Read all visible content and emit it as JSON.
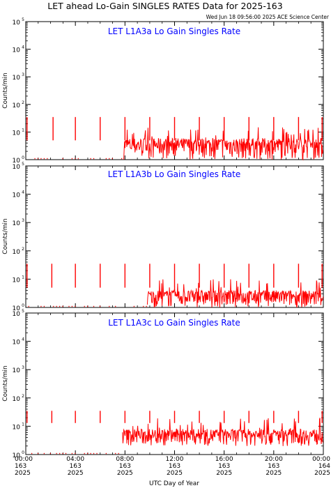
{
  "header": {
    "title": "LET ahead Lo-Gain SINGLES RATES Data for 2025-163",
    "timestamp": "Wed Jun 18 09:56:00 2025 ACE Science Center"
  },
  "colors": {
    "data": "#ff0000",
    "panel_title": "#0000ff",
    "axes": "#000000",
    "background": "#ffffff"
  },
  "chart_data": [
    {
      "type": "line",
      "title": "LET L1A3a Lo Gain Singles Rate",
      "ylabel": "Counts/min",
      "yscale": "log",
      "ylim": [
        1,
        100000
      ],
      "xlim": [
        0,
        24
      ],
      "x_unit": "hours of 2025-163 (UTC)",
      "spike_hours": [
        0.1,
        2.2,
        4.0,
        6.0,
        8.0,
        10.0,
        12.0,
        14.0,
        16.0,
        18.0,
        20.0,
        22.0,
        23.9
      ],
      "spike_peak": 35,
      "spike_low": 5,
      "sparse_until_hour": 7.9,
      "baseline_range": [
        1,
        6
      ]
    },
    {
      "type": "line",
      "title": "LET L1A3b Lo Gain Singles Rate",
      "ylabel": "Counts/min",
      "yscale": "log",
      "ylim": [
        1,
        100000
      ],
      "xlim": [
        0,
        24
      ],
      "x_unit": "hours of 2025-163 (UTC)",
      "spike_hours": [
        0.1,
        2.1,
        4.0,
        6.0,
        8.0,
        10.0,
        12.0,
        14.0,
        16.0,
        18.0,
        20.0,
        22.0,
        23.9
      ],
      "spike_peak": 35,
      "spike_low": 5,
      "sparse_until_hour": 9.8,
      "baseline_range": [
        1,
        4
      ]
    },
    {
      "type": "line",
      "title": "LET L1A3c Lo Gain Singles Rate",
      "ylabel": "Counts/min",
      "yscale": "log",
      "ylim": [
        1,
        100000
      ],
      "xlim": [
        0,
        24
      ],
      "x_unit": "hours of 2025-163 (UTC)",
      "spike_hours": [
        0.1,
        2.1,
        4.0,
        6.0,
        8.0,
        10.0,
        12.0,
        14.0,
        16.0,
        18.0,
        20.0,
        22.0,
        23.9
      ],
      "spike_peak": 35,
      "spike_low": 13,
      "sparse_until_hour": 7.8,
      "baseline_range": [
        2,
        8
      ]
    }
  ],
  "y_tick_labels": [
    {
      "base": "10",
      "exp": "0"
    },
    {
      "base": "10",
      "exp": "1"
    },
    {
      "base": "10",
      "exp": "2"
    },
    {
      "base": "10",
      "exp": "3"
    },
    {
      "base": "10",
      "exp": "4"
    },
    {
      "base": "10",
      "exp": "5"
    }
  ],
  "x_axis": {
    "label": "UTC Day of Year",
    "ticks": [
      {
        "hour": 0,
        "time": "00:00",
        "day": "163",
        "year": "2025"
      },
      {
        "hour": 4,
        "time": "04:00",
        "day": "163",
        "year": "2025"
      },
      {
        "hour": 8,
        "time": "08:00",
        "day": "163",
        "year": "2025"
      },
      {
        "hour": 12,
        "time": "12:00",
        "day": "163",
        "year": "2025"
      },
      {
        "hour": 16,
        "time": "16:00",
        "day": "163",
        "year": "2025"
      },
      {
        "hour": 20,
        "time": "20:00",
        "day": "163",
        "year": "2025"
      },
      {
        "hour": 24,
        "time": "00:00",
        "day": "164",
        "year": "2025"
      }
    ]
  }
}
